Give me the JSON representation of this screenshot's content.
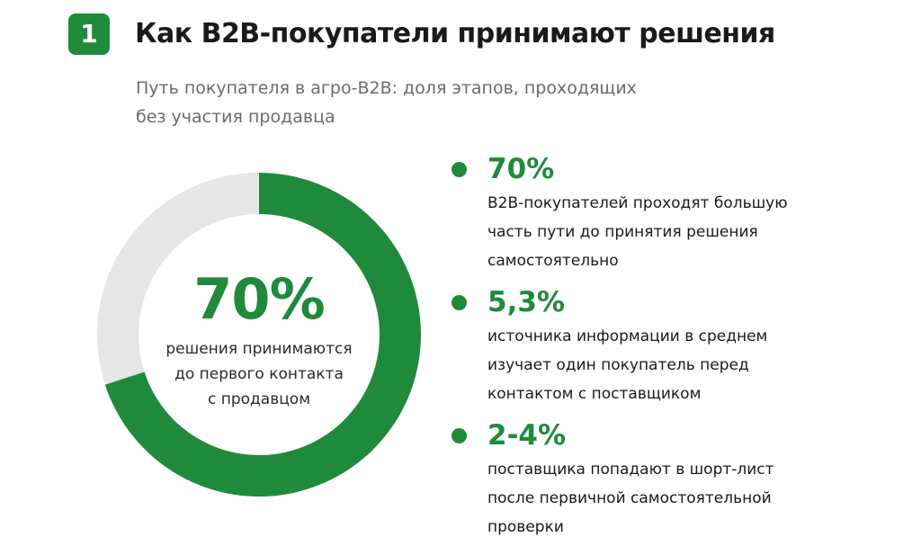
{
  "header": {
    "badge": "1",
    "title": "Как B2B-покупатели принимают решения",
    "subtitle_lines": [
      "Путь покупателя в агро-B2B: доля этапов, проходящих",
      "без участия продавца"
    ]
  },
  "chart_data": {
    "type": "pie",
    "subtype": "donut",
    "slices": [
      {
        "value": 70,
        "color": "#1f8a3b"
      },
      {
        "value": 30,
        "color": "#e6e6e6"
      }
    ],
    "center_value": "70%",
    "center_caption_lines": [
      "решения принимаются",
      "до первого контакта",
      "с продавцом"
    ]
  },
  "stats": [
    {
      "value": "70%",
      "desc_lines": [
        "B2B-покупателей проходят большую",
        "часть пути до принятия решения",
        "самостоятельно"
      ]
    },
    {
      "value": "5,3%",
      "desc_lines": [
        "источника информации в среднем",
        "изучает один покупатель перед",
        "контактом с поставщиком"
      ]
    },
    {
      "value": "2-4%",
      "desc_lines": [
        "поставщика попадают в шорт-лист",
        "после первичной самостоятельной",
        "проверки"
      ]
    }
  ],
  "colors": {
    "accent": "#1f8a3b",
    "track": "#e6e6e6",
    "subtitle": "#6b6b6b"
  }
}
